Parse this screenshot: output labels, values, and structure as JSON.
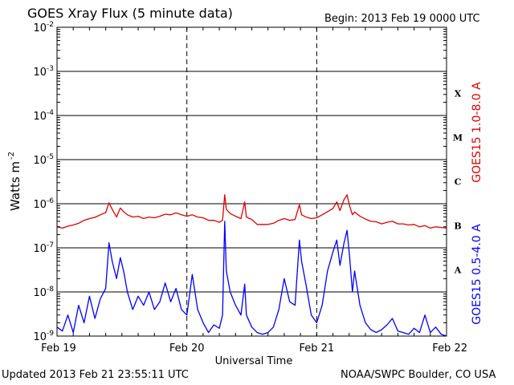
{
  "header": {
    "title": "GOES Xray Flux (5 minute data)",
    "begin": "Begin:  2013 Feb 19 0000 UTC"
  },
  "footer": {
    "updated": "Updated 2013 Feb 21 23:55:11 UTC",
    "credit": "NOAA/SWPC Boulder, CO USA"
  },
  "chart_data": {
    "type": "line",
    "title": "GOES Xray Flux (5 minute data)",
    "xlabel": "Universal Time",
    "ylabel": "Watts m",
    "ylabel_sup": "-2",
    "yscale": "log",
    "ylim": [
      1e-09,
      0.01
    ],
    "xlim": [
      0,
      72
    ],
    "x_units": "hours since 2013 Feb 19 0000 UTC",
    "x_ticks": [
      {
        "x": 0,
        "label": "Feb 19"
      },
      {
        "x": 24,
        "label": "Feb 20"
      },
      {
        "x": 48,
        "label": "Feb 21"
      },
      {
        "x": 72,
        "label": "Feb 22"
      }
    ],
    "y_ticks": [
      {
        "exp": -2,
        "base": "10",
        "sup": "-2"
      },
      {
        "exp": -3,
        "base": "10",
        "sup": "-3"
      },
      {
        "exp": -4,
        "base": "10",
        "sup": "-4"
      },
      {
        "exp": -5,
        "base": "10",
        "sup": "-5"
      },
      {
        "exp": -6,
        "base": "10",
        "sup": "-6"
      },
      {
        "exp": -7,
        "base": "10",
        "sup": "-7"
      },
      {
        "exp": -8,
        "base": "10",
        "sup": "-8"
      },
      {
        "exp": -9,
        "base": "10",
        "sup": "-9"
      }
    ],
    "flare_classes": [
      {
        "label": "X",
        "exp": -3.5
      },
      {
        "label": "M",
        "exp": -4.5
      },
      {
        "label": "C",
        "exp": -5.5
      },
      {
        "label": "B",
        "exp": -6.5
      },
      {
        "label": "A",
        "exp": -7.5
      }
    ],
    "grid": true,
    "series": [
      {
        "name": "GOES15 1.0-8.0 A",
        "color": "#e00000",
        "points": [
          [
            0,
            3e-07
          ],
          [
            1,
            2.8e-07
          ],
          [
            2,
            3.1e-07
          ],
          [
            3,
            3.3e-07
          ],
          [
            4,
            3.6e-07
          ],
          [
            5,
            4.2e-07
          ],
          [
            6,
            4.6e-07
          ],
          [
            7,
            4.9e-07
          ],
          [
            8,
            5.6e-07
          ],
          [
            9,
            6.3e-07
          ],
          [
            9.6,
            1.05e-06
          ],
          [
            10.2,
            7.5e-07
          ],
          [
            11,
            5e-07
          ],
          [
            11.7,
            8e-07
          ],
          [
            12.3,
            6.6e-07
          ],
          [
            13,
            5.6e-07
          ],
          [
            14,
            5e-07
          ],
          [
            15,
            5.2e-07
          ],
          [
            16,
            4.6e-07
          ],
          [
            17,
            5e-07
          ],
          [
            18,
            4.8e-07
          ],
          [
            19,
            5.2e-07
          ],
          [
            20,
            5.8e-07
          ],
          [
            21,
            5.6e-07
          ],
          [
            22,
            6.2e-07
          ],
          [
            23,
            5.6e-07
          ],
          [
            24,
            5.2e-07
          ],
          [
            25,
            5.6e-07
          ],
          [
            26,
            5e-07
          ],
          [
            27,
            4.8e-07
          ],
          [
            28,
            4.2e-07
          ],
          [
            29,
            4.2e-07
          ],
          [
            30,
            3.8e-07
          ],
          [
            30.6,
            4.2e-07
          ],
          [
            31,
            1.6e-06
          ],
          [
            31.3,
            7.5e-07
          ],
          [
            32,
            6e-07
          ],
          [
            33,
            5.2e-07
          ],
          [
            34,
            4.6e-07
          ],
          [
            34.7,
            1.1e-06
          ],
          [
            35,
            5e-07
          ],
          [
            36,
            4.4e-07
          ],
          [
            37,
            3.4e-07
          ],
          [
            38,
            3.4e-07
          ],
          [
            39,
            3.4e-07
          ],
          [
            40,
            3.6e-07
          ],
          [
            41,
            4.2e-07
          ],
          [
            42,
            4.6e-07
          ],
          [
            43,
            4.2e-07
          ],
          [
            44,
            4.4e-07
          ],
          [
            44.8,
            9.5e-07
          ],
          [
            45.2,
            5.6e-07
          ],
          [
            46,
            5e-07
          ],
          [
            47,
            4.6e-07
          ],
          [
            48,
            4.8e-07
          ],
          [
            49,
            5.6e-07
          ],
          [
            50,
            6.6e-07
          ],
          [
            51,
            7.8e-07
          ],
          [
            51.7,
            1.1e-06
          ],
          [
            52.3,
            7e-07
          ],
          [
            53,
            1.2e-06
          ],
          [
            53.6,
            1.6e-06
          ],
          [
            54.1,
            8.8e-07
          ],
          [
            54.6,
            5.6e-07
          ],
          [
            55,
            6.5e-07
          ],
          [
            56,
            5.2e-07
          ],
          [
            57,
            4.5e-07
          ],
          [
            58,
            4e-07
          ],
          [
            59,
            3.9e-07
          ],
          [
            60,
            3.5e-07
          ],
          [
            61,
            3.8e-07
          ],
          [
            62,
            4e-07
          ],
          [
            63,
            3.5e-07
          ],
          [
            64,
            3.5e-07
          ],
          [
            65,
            3.3e-07
          ],
          [
            66,
            3.4e-07
          ],
          [
            67,
            3e-07
          ],
          [
            68,
            3.2e-07
          ],
          [
            69,
            2.8e-07
          ],
          [
            70,
            3e-07
          ],
          [
            71,
            2.9e-07
          ],
          [
            72,
            2.8e-07
          ]
        ]
      },
      {
        "name": "GOES15 0.5-4.0 A",
        "color": "#0000ff",
        "points": [
          [
            0,
            1.6e-09
          ],
          [
            1,
            1.3e-09
          ],
          [
            2,
            3e-09
          ],
          [
            3,
            1.2e-09
          ],
          [
            4,
            5e-09
          ],
          [
            5,
            2e-09
          ],
          [
            6,
            8e-09
          ],
          [
            7,
            2.5e-09
          ],
          [
            8,
            7e-09
          ],
          [
            9,
            1.2e-08
          ],
          [
            9.6,
            1.3e-07
          ],
          [
            10.2,
            5e-08
          ],
          [
            11,
            2e-08
          ],
          [
            11.7,
            6e-08
          ],
          [
            12.3,
            3e-08
          ],
          [
            13,
            1e-08
          ],
          [
            14,
            4e-09
          ],
          [
            15,
            8e-09
          ],
          [
            16,
            5e-09
          ],
          [
            17,
            1e-08
          ],
          [
            18,
            4e-09
          ],
          [
            19,
            6e-09
          ],
          [
            20,
            1.6e-08
          ],
          [
            21,
            6e-09
          ],
          [
            22,
            1.2e-08
          ],
          [
            23,
            4e-09
          ],
          [
            24,
            3e-09
          ],
          [
            25,
            2.5e-08
          ],
          [
            26,
            4e-09
          ],
          [
            27,
            2e-09
          ],
          [
            28,
            1.2e-09
          ],
          [
            29,
            1.8e-09
          ],
          [
            30,
            1.5e-09
          ],
          [
            30.6,
            3e-09
          ],
          [
            31,
            4e-07
          ],
          [
            31.3,
            3e-08
          ],
          [
            32,
            1e-08
          ],
          [
            33,
            5e-09
          ],
          [
            34,
            3e-09
          ],
          [
            34.7,
            1.5e-08
          ],
          [
            35,
            3e-09
          ],
          [
            36,
            1.6e-09
          ],
          [
            37,
            1.2e-09
          ],
          [
            38,
            1.1e-09
          ],
          [
            39,
            1.2e-09
          ],
          [
            40,
            1.6e-09
          ],
          [
            41,
            4e-09
          ],
          [
            42,
            2e-08
          ],
          [
            43,
            6e-09
          ],
          [
            44,
            5e-09
          ],
          [
            44.8,
            1.5e-07
          ],
          [
            45.2,
            5e-08
          ],
          [
            46,
            1.5e-08
          ],
          [
            47,
            3e-09
          ],
          [
            48,
            2e-09
          ],
          [
            49,
            5e-09
          ],
          [
            50,
            3e-08
          ],
          [
            51,
            8e-08
          ],
          [
            51.7,
            1.5e-07
          ],
          [
            52.3,
            4e-08
          ],
          [
            53,
            1.2e-07
          ],
          [
            53.6,
            2.5e-07
          ],
          [
            54.1,
            6e-08
          ],
          [
            54.6,
            1e-08
          ],
          [
            55,
            3e-08
          ],
          [
            56,
            5e-09
          ],
          [
            57,
            2e-09
          ],
          [
            58,
            1.4e-09
          ],
          [
            59,
            1.2e-09
          ],
          [
            60,
            1.4e-09
          ],
          [
            61,
            1.8e-09
          ],
          [
            62,
            2.5e-09
          ],
          [
            63,
            1.3e-09
          ],
          [
            64,
            1.2e-09
          ],
          [
            65,
            1.1e-09
          ],
          [
            66,
            1.5e-09
          ],
          [
            67,
            1.2e-09
          ],
          [
            68,
            3e-09
          ],
          [
            69,
            1.2e-09
          ],
          [
            70,
            1.6e-09
          ],
          [
            71,
            1.1e-09
          ],
          [
            72,
            1e-09
          ]
        ]
      }
    ]
  }
}
